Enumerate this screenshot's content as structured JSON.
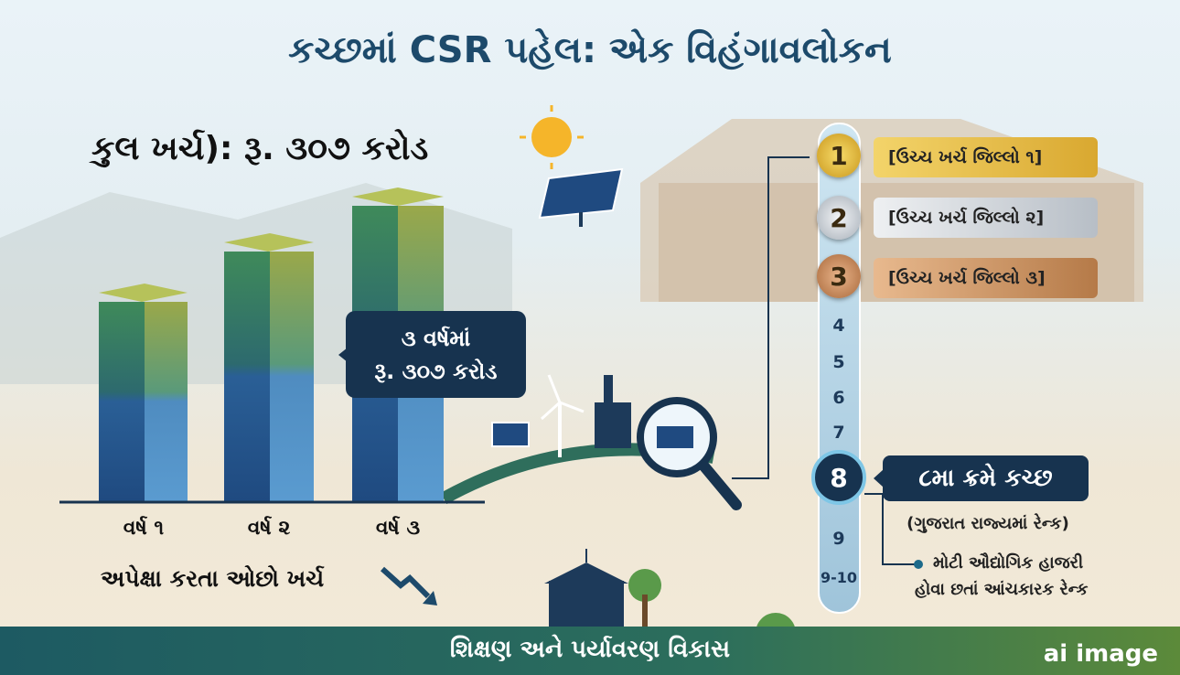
{
  "title": "કચ્છમાં CSR પહેલ: એક વિહંગાવલોકન",
  "total_spend": "કુલ ખર્ચ): રૂ. ૩૦૭ કરોડ",
  "callout": {
    "line1": "૩ વર્ષમાં",
    "line2": "રૂ. ૩૦૭ કરોડ"
  },
  "years": [
    "વર્ષ ૧",
    "વર્ષ ૨",
    "વર્ષ ૩"
  ],
  "lower_spend_note": "અપેક્ષા કરતા ઓછો ખર્ચ",
  "ranking": {
    "top": [
      {
        "rank": "1",
        "label": "[ઉચ્ચ ખર્ચ જિલ્લો ૧]"
      },
      {
        "rank": "2",
        "label": "[ઉચ્ચ ખર્ચ જિલ્લો ૨]"
      },
      {
        "rank": "3",
        "label": "[ઉચ્ચ ખર્ચ જિલ્લો ૩]"
      }
    ],
    "middle": [
      "4",
      "5",
      "6",
      "7"
    ],
    "kutch_rank": "8",
    "kutch_label": "૮મા ક્રમે કચ્છ",
    "kutch_sub": "(ગુજરાત રાજ્યમાં રેન્ક)",
    "bottom": [
      "9",
      "9-10"
    ],
    "note": [
      "મોટી ઔદ્યોગિક હાજરી",
      "હોવા છતાં આંચકારક રેન્ક"
    ]
  },
  "footer": "શિક્ષણ અને પર્યાવરણ વિકાસ",
  "watermark": "ai image"
}
